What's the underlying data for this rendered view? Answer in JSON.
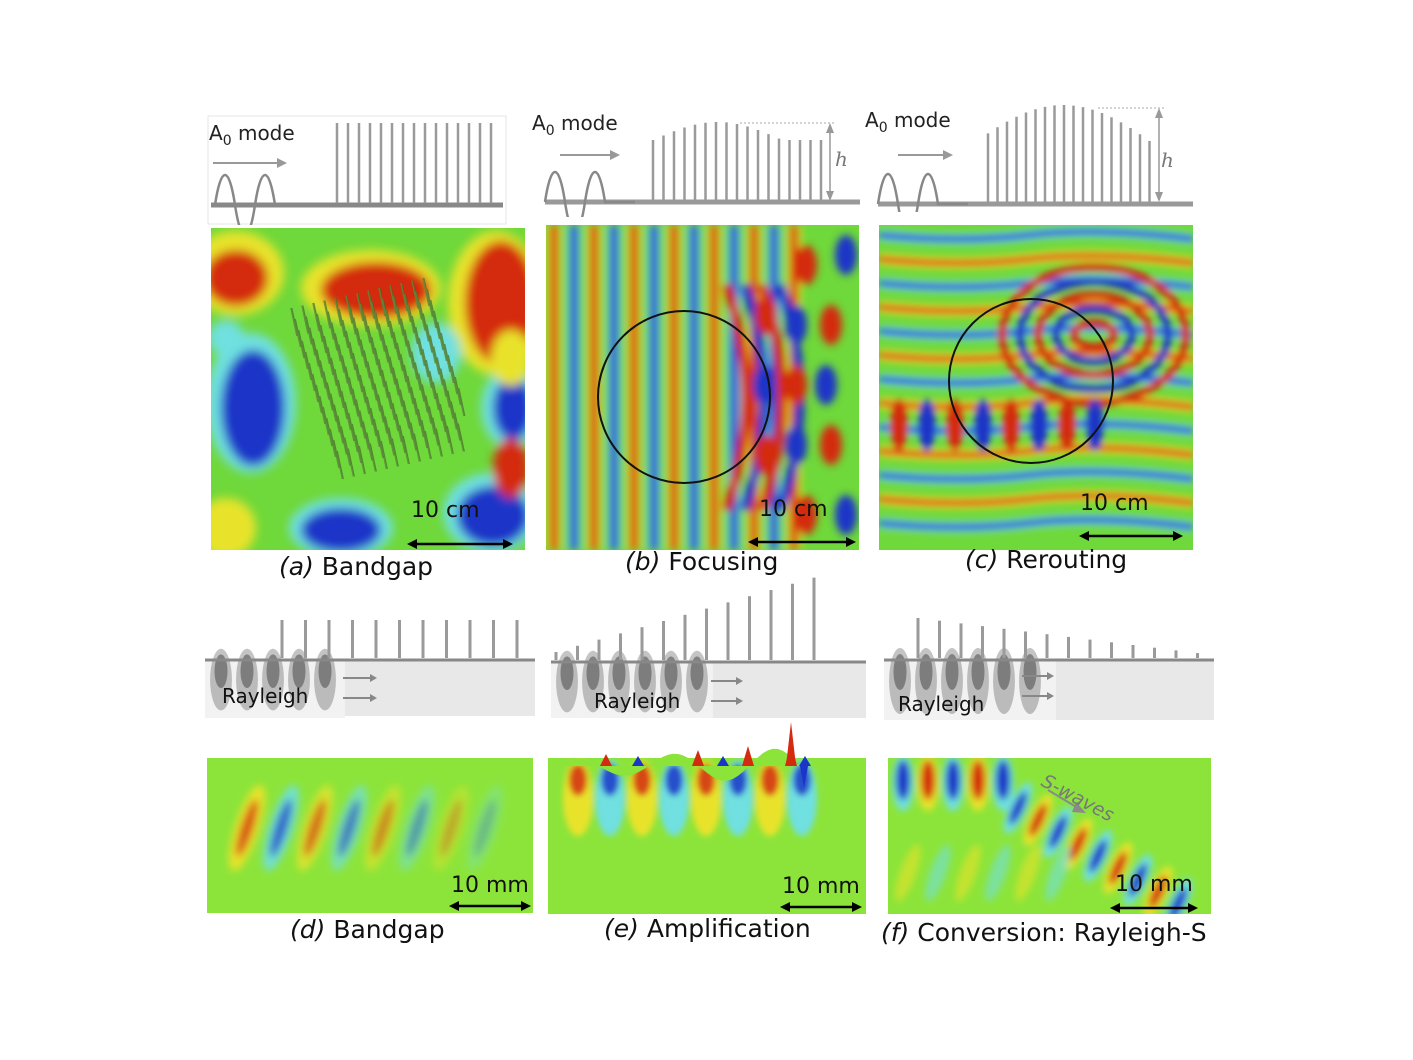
{
  "top_labels": {
    "mode_prefix": "A",
    "mode_sub": "0",
    "mode_suffix": " mode",
    "height_symbol": "h"
  },
  "scales": {
    "a": "10 cm",
    "b": "10 cm",
    "c": "10 cm",
    "d": "10 mm",
    "e": "10 mm",
    "f": "10 mm"
  },
  "captions": {
    "a": {
      "letter": "(a)",
      "text": " Bandgap"
    },
    "b": {
      "letter": "(b)",
      "text": " Focusing"
    },
    "c": {
      "letter": "(c)",
      "text": " Rerouting"
    },
    "d": {
      "letter": "(d)",
      "text": " Bandgap"
    },
    "e": {
      "letter": "(e)",
      "text": " Amplification"
    },
    "f": {
      "letter": "(f)",
      "text": " Conversion: Rayleigh-S"
    }
  },
  "rayleigh_label": "Rayleigh",
  "swaves_label": "S-waves",
  "colormap": {
    "red": "#d42a10",
    "orange": "#f28a1c",
    "yellow": "#e8e32a",
    "green": "#7ee33a",
    "cyan": "#6fe0e0",
    "blue": "#1a35c8",
    "resonator_gray": "#9a9a9a"
  }
}
